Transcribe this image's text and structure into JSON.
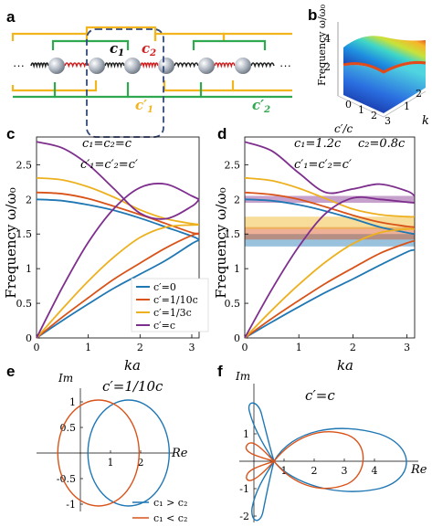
{
  "panel_letters": {
    "a": "a",
    "b": "b",
    "c": "c",
    "d": "d",
    "e": "e",
    "f": "f"
  },
  "panel_a": {
    "labels": {
      "c1": "c",
      "c1_sub": "1",
      "c2": "c",
      "c2_sub": "2",
      "c1p": "c′",
      "c1p_sub": "1",
      "c2p": "c′",
      "c2p_sub": "2",
      "dots": "···"
    },
    "colors": {
      "yellow": "#f2b51e",
      "green": "#2fa84f",
      "spring_black": "#222222",
      "spring_red": "#d01f1f",
      "cell_box": "#334a7c"
    }
  },
  "panel_b": {
    "ylabel": "Frequency ω/ω₀",
    "xlabel": "c′/c",
    "klabel": "k",
    "ticks_z": [
      "2",
      "4"
    ],
    "ticks_x": [
      "0",
      "1",
      "2",
      "3"
    ],
    "ticks_k": [
      "1",
      "2"
    ]
  },
  "panel_c": {
    "ylabel": "Frequency ω/ω₀",
    "xlabel": "ka",
    "eq1": "c₁=c₂=c",
    "eq2": "c′₁=c′₂=c′",
    "legend": [
      "c′=0",
      "c′=1/10c",
      "c′=1/3c",
      "c′=c"
    ]
  },
  "panel_d": {
    "ylabel": "Frequency ω/ω₀",
    "xlabel": "ka",
    "eq1": "c₁=1.2c",
    "eq2": "c₂=0.8c",
    "eq3": "c′₁=c′₂=c′"
  },
  "panel_e": {
    "title": "c′=1/10c",
    "im": "Im",
    "re": "Re",
    "legend": [
      "c₁ > c₂",
      "c₁ < c₂"
    ]
  },
  "panel_f": {
    "title": "c′=c",
    "im": "Im",
    "re": "Re"
  },
  "chart_data": [
    {
      "type": "line",
      "panel": "c",
      "xlabel": "ka",
      "ylabel": "Frequency ω/ω₀",
      "xlim": [
        0,
        3.14159
      ],
      "ylim": [
        0,
        2.9
      ],
      "x_ticks": [
        "0",
        "1",
        "2",
        "3"
      ],
      "y_ticks": [
        "0",
        "0.5",
        "1",
        "1.5",
        "2",
        "2.5"
      ],
      "series": [
        {
          "name": "c′=0",
          "color": "#1f77b4",
          "x": [
            0,
            0.5,
            1,
            1.5,
            2,
            2.5,
            3,
            3.14
          ],
          "values": [
            0,
            0.25,
            0.49,
            0.72,
            0.92,
            1.12,
            1.36,
            1.41
          ],
          "branch": "acoustic"
        },
        {
          "name": "c′=0",
          "color": "#1f77b4",
          "x": [
            0,
            0.5,
            1,
            1.5,
            2,
            2.5,
            3,
            3.14
          ],
          "values": [
            2.0,
            1.98,
            1.92,
            1.84,
            1.73,
            1.6,
            1.47,
            1.42
          ],
          "branch": "optical"
        },
        {
          "name": "c′=1/10c",
          "color": "#d95319",
          "x": [
            0,
            0.5,
            1,
            1.5,
            2,
            2.5,
            3,
            3.14
          ],
          "values": [
            0,
            0.3,
            0.58,
            0.85,
            1.08,
            1.3,
            1.48,
            1.5
          ],
          "branch": "acoustic"
        },
        {
          "name": "c′=1/10c",
          "color": "#d95319",
          "x": [
            0,
            0.5,
            1,
            1.5,
            2,
            2.5,
            3,
            3.14
          ],
          "values": [
            2.1,
            2.08,
            2.01,
            1.9,
            1.78,
            1.65,
            1.52,
            1.51
          ],
          "branch": "optical"
        },
        {
          "name": "c′=1/3c",
          "color": "#edb120",
          "x": [
            0,
            0.5,
            1,
            1.5,
            2,
            2.5,
            3,
            3.14
          ],
          "values": [
            0,
            0.42,
            0.82,
            1.17,
            1.45,
            1.6,
            1.63,
            1.63
          ],
          "branch": "acoustic"
        },
        {
          "name": "c′=1/3c",
          "color": "#edb120",
          "x": [
            0,
            0.5,
            1,
            1.5,
            2,
            2.5,
            3,
            3.14
          ],
          "values": [
            2.31,
            2.28,
            2.18,
            2.03,
            1.85,
            1.72,
            1.65,
            1.64
          ],
          "branch": "optical"
        },
        {
          "name": "c′=c",
          "color": "#7e2f8e",
          "x": [
            0,
            0.5,
            1,
            1.5,
            2,
            2.5,
            3,
            3.14
          ],
          "values": [
            0,
            0.73,
            1.38,
            1.87,
            2.17,
            2.22,
            2.05,
            2.0
          ],
          "branch": "acoustic"
        },
        {
          "name": "c′=c",
          "color": "#7e2f8e",
          "x": [
            0,
            0.5,
            1,
            1.5,
            2,
            2.5,
            3,
            3.14
          ],
          "values": [
            2.83,
            2.74,
            2.5,
            2.15,
            1.8,
            1.72,
            1.9,
            2.0
          ],
          "branch": "optical"
        }
      ]
    },
    {
      "type": "line",
      "panel": "d",
      "xlabel": "ka",
      "ylabel": "Frequency ω/ω₀",
      "xlim": [
        0,
        3.14159
      ],
      "ylim": [
        0,
        2.9
      ],
      "x_ticks": [
        "0",
        "1",
        "2",
        "3"
      ],
      "y_ticks": [
        "0",
        "0.5",
        "1",
        "1.5",
        "2",
        "2.5"
      ],
      "bandgaps": [
        {
          "color": "#1f77b4",
          "range": [
            1.32,
            1.5
          ]
        },
        {
          "color": "#d95319",
          "range": [
            1.42,
            1.6
          ]
        },
        {
          "color": "#edb120",
          "range": [
            1.57,
            1.75
          ]
        },
        {
          "color": "#7e2f8e",
          "range": [
            1.95,
            2.05
          ]
        }
      ],
      "series": [
        {
          "color": "#1f77b4",
          "x": [
            0,
            0.5,
            1,
            1.5,
            2,
            2.5,
            3,
            3.14
          ],
          "values": [
            0,
            0.23,
            0.45,
            0.66,
            0.85,
            1.05,
            1.24,
            1.27
          ]
        },
        {
          "color": "#1f77b4",
          "x": [
            0,
            0.5,
            1,
            1.5,
            2,
            2.5,
            3,
            3.14
          ],
          "values": [
            2.0,
            1.98,
            1.92,
            1.83,
            1.72,
            1.6,
            1.52,
            1.5
          ]
        },
        {
          "color": "#d95319",
          "x": [
            0,
            0.5,
            1,
            1.5,
            2,
            2.5,
            3,
            3.14
          ],
          "values": [
            0,
            0.28,
            0.54,
            0.79,
            1.01,
            1.22,
            1.37,
            1.4
          ]
        },
        {
          "color": "#d95319",
          "x": [
            0,
            0.5,
            1,
            1.5,
            2,
            2.5,
            3,
            3.14
          ],
          "values": [
            2.1,
            2.07,
            2.0,
            1.89,
            1.77,
            1.67,
            1.61,
            1.6
          ]
        },
        {
          "color": "#edb120",
          "x": [
            0,
            0.5,
            1,
            1.5,
            2,
            2.5,
            3,
            3.14
          ],
          "values": [
            0,
            0.4,
            0.77,
            1.1,
            1.36,
            1.52,
            1.57,
            1.57
          ]
        },
        {
          "color": "#edb120",
          "x": [
            0,
            0.5,
            1,
            1.5,
            2,
            2.5,
            3,
            3.14
          ],
          "values": [
            2.31,
            2.27,
            2.16,
            2.01,
            1.86,
            1.78,
            1.75,
            1.75
          ]
        },
        {
          "color": "#7e2f8e",
          "x": [
            0,
            0.5,
            1,
            1.5,
            2,
            2.5,
            3,
            3.14
          ],
          "values": [
            0,
            0.7,
            1.32,
            1.8,
            2.02,
            2.0,
            1.96,
            1.95
          ]
        },
        {
          "color": "#7e2f8e",
          "x": [
            0,
            0.5,
            1,
            1.5,
            2,
            2.5,
            3,
            3.14
          ],
          "values": [
            2.83,
            2.7,
            2.38,
            2.1,
            2.15,
            2.22,
            2.12,
            2.05
          ]
        }
      ]
    },
    {
      "type": "line",
      "panel": "e",
      "title": "c′=1/10c",
      "xlabel": "Re",
      "ylabel": "Im",
      "xlim": [
        -0.2,
        3.0
      ],
      "ylim": [
        -1.2,
        1.2
      ],
      "x_ticks": [
        "1",
        "2"
      ],
      "y_ticks": [
        "-1",
        "-0.5",
        "0.5",
        "1"
      ],
      "series": [
        {
          "name": "c₁ > c₂",
          "color": "#1f77b4",
          "shape": "ellipse",
          "center": [
            1.6,
            0
          ],
          "radius": [
            1.0,
            1.0
          ]
        },
        {
          "name": "c₁ < c₂",
          "color": "#d95319",
          "shape": "ellipse",
          "center": [
            0.6,
            0
          ],
          "radius": [
            1.0,
            1.0
          ]
        }
      ]
    },
    {
      "type": "line",
      "panel": "f",
      "title": "c′=c",
      "xlabel": "Re",
      "ylabel": "Im",
      "x_ticks": [
        "1",
        "2",
        "3",
        "4"
      ],
      "y_ticks": [
        "-2",
        "-1",
        "1"
      ],
      "series": [
        {
          "name": "c₁ > c₂",
          "color": "#1f77b4"
        },
        {
          "name": "c₁ < c₂",
          "color": "#d95319"
        }
      ]
    }
  ]
}
